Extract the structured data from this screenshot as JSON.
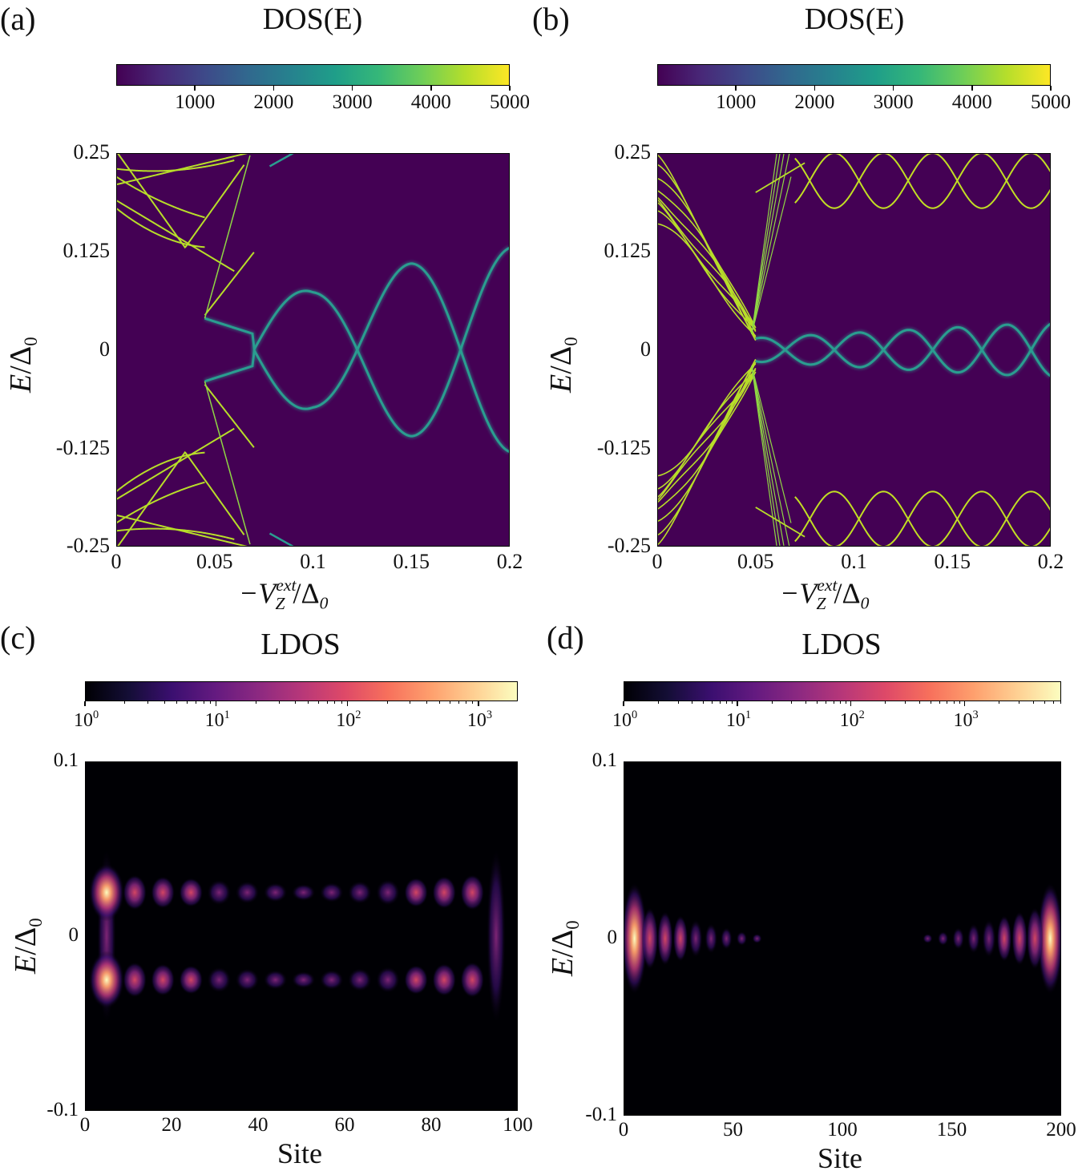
{
  "panels": [
    {
      "label": "(a)",
      "colorbar_title": "DOS(E)",
      "colormap": "viridis",
      "colorbar_ticks": [
        "1000",
        "2000",
        "3000",
        "4000",
        "5000"
      ],
      "colorbar_values": [
        1000,
        2000,
        3000,
        4000,
        5000
      ],
      "colorbar_range": [
        0,
        5000
      ],
      "xticks": [
        "0",
        "0.05",
        "0.1",
        "0.15",
        "0.2"
      ],
      "yticks": [
        "0.25",
        "0.125",
        "0",
        "-0.125",
        "-0.25"
      ],
      "xlabel": "−V",
      "xlabel_sup": "ext",
      "xlabel_sub": "Z",
      "xlabel_tail": "/Δ",
      "xlabel_tail_sub": "0",
      "ylabel": "E",
      "ylabel_tail": "/Δ",
      "ylabel_tail_sub": "0"
    },
    {
      "label": "(b)",
      "colorbar_title": "DOS(E)",
      "colormap": "viridis",
      "colorbar_ticks": [
        "1000",
        "2000",
        "3000",
        "4000",
        "5000"
      ],
      "colorbar_values": [
        1000,
        2000,
        3000,
        4000,
        5000
      ],
      "colorbar_range": [
        0,
        5000
      ],
      "xticks": [
        "0",
        "0.05",
        "0.1",
        "0.15",
        "0.2"
      ],
      "yticks": [
        "0.25",
        "0.125",
        "0",
        "-0.125",
        "-0.25"
      ],
      "xlabel": "−V",
      "xlabel_sup": "ext",
      "xlabel_sub": "Z",
      "xlabel_tail": "/Δ",
      "xlabel_tail_sub": "0",
      "ylabel": "E",
      "ylabel_tail": "/Δ",
      "ylabel_tail_sub": "0"
    },
    {
      "label": "(c)",
      "colorbar_title": "LDOS",
      "colormap": "magma (log)",
      "colorbar_ticks": [
        "10",
        "10",
        "10",
        "10"
      ],
      "colorbar_exponents": [
        "0",
        "1",
        "2",
        "3"
      ],
      "colorbar_log_range": [
        0,
        3.3
      ],
      "xticks": [
        "0",
        "20",
        "40",
        "60",
        "80",
        "100"
      ],
      "yticks": [
        "0.1",
        "0",
        "-0.1"
      ],
      "xlabel": "Site",
      "ylabel": "E",
      "ylabel_tail": "/Δ",
      "ylabel_tail_sub": "0"
    },
    {
      "label": "(d)",
      "colorbar_title": "LDOS",
      "colormap": "magma (log)",
      "colorbar_ticks": [
        "10",
        "10",
        "10",
        "10"
      ],
      "colorbar_exponents": [
        "0",
        "1",
        "2",
        "3"
      ],
      "colorbar_log_range": [
        0,
        3.85
      ],
      "xticks": [
        "0",
        "50",
        "100",
        "150",
        "200"
      ],
      "yticks": [
        "0.1",
        "0",
        "-0.1"
      ],
      "xlabel": "Site",
      "ylabel": "E",
      "ylabel_tail": "/Δ",
      "ylabel_tail_sub": "0"
    }
  ],
  "chart_data": [
    {
      "type": "heatmap",
      "title": "DOS(E)",
      "x_range": [
        0,
        0.2
      ],
      "y_range": [
        -0.25,
        0.25
      ],
      "color_range": [
        0,
        5000
      ],
      "notes": "Bulk bands close near 0.05-0.07; a single Majorana-like oscillating branch pair crosses zero at 0.07, 0.125, 0.175.",
      "oscillation": {
        "amplitude_at_0.1": 0.075,
        "amplitude_at_0.15": 0.11,
        "amplitude_at_0.2": 0.13,
        "zero_crossings": [
          0.07,
          0.125,
          0.175
        ]
      }
    },
    {
      "type": "heatmap",
      "title": "DOS(E)",
      "x_range": [
        0,
        0.2
      ],
      "y_range": [
        -0.25,
        0.25
      ],
      "color_range": [
        0,
        5000
      ],
      "notes": "Gap closes near 0.048; small oscillating zero-energy states with amplitude ~0.03 and crossings every ~0.025; gapped bands oscillating between ±0.18 and ±0.25.",
      "oscillation": {
        "amplitude": 0.03,
        "zero_crossings": [
          0.07,
          0.09,
          0.115,
          0.14,
          0.165,
          0.19
        ]
      }
    },
    {
      "type": "heatmap",
      "title": "LDOS",
      "x_range": [
        0,
        100
      ],
      "y_range": [
        -0.1,
        0.1
      ],
      "color_scale": "log",
      "notes": "Two split peaks at E ≈ +0.025 and -0.025 spanning all sites; strongest at sites ~5 and ~95.",
      "peak_energies": [
        0.025,
        -0.025
      ],
      "bright_sites": [
        5,
        95
      ]
    },
    {
      "type": "heatmap",
      "title": "LDOS",
      "x_range": [
        0,
        200
      ],
      "y_range": [
        -0.1,
        0.1
      ],
      "color_scale": "log",
      "notes": "Zero-energy state localized at both ends (sites ~5 and ~195), decaying toward the middle (~70-135 dark).",
      "peak_energies": [
        0
      ],
      "bright_sites": [
        5,
        195
      ]
    }
  ]
}
